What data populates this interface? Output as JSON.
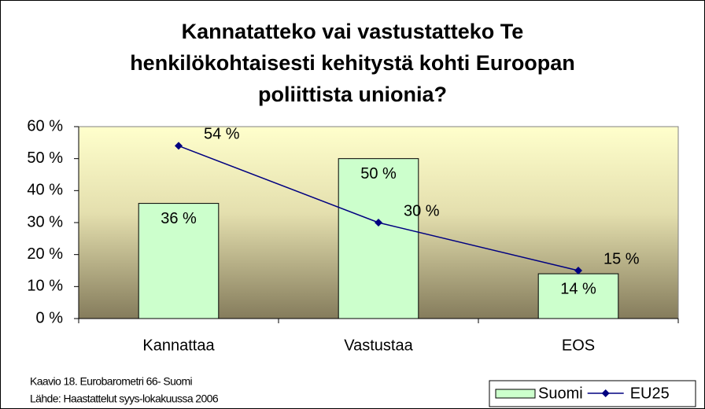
{
  "chart_data": {
    "type": "bar",
    "title": "Kannatatteko vai vastustatteko Te henkilökohtaisesti kehitystä kohti Euroopan poliittista unionia?",
    "categories": [
      "Kannattaa",
      "Vastustaa",
      "EOS"
    ],
    "series": [
      {
        "name": "Suomi",
        "type": "bar",
        "color": "#ccffcc",
        "values": [
          36,
          50,
          14
        ],
        "value_labels": [
          "36 %",
          "50 %",
          "14 %"
        ]
      },
      {
        "name": "EU25",
        "type": "line",
        "color": "#000080",
        "values": [
          54,
          30,
          15
        ],
        "value_labels": [
          "54 %",
          "30 %",
          "15 %"
        ]
      }
    ],
    "ylim": [
      0,
      60
    ],
    "yticks": [
      {
        "value": 0,
        "label": "0 %"
      },
      {
        "value": 10,
        "label": "10 %"
      },
      {
        "value": 20,
        "label": "20 %"
      },
      {
        "value": 30,
        "label": "30 %"
      },
      {
        "value": 40,
        "label": "40 %"
      },
      {
        "value": 50,
        "label": "50 %"
      },
      {
        "value": 60,
        "label": "60 %"
      }
    ],
    "grid": false,
    "legend": "bottom-right",
    "notes": [
      "Kaavio 18. Eurobarometri 66- Suomi",
      "Lähde: Haastattelut syys-lokakuussa 2006"
    ]
  }
}
